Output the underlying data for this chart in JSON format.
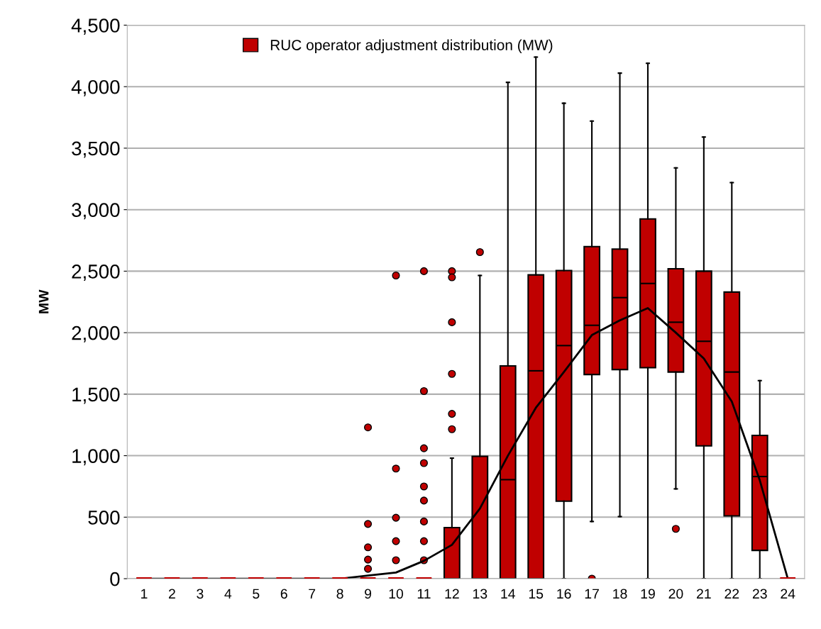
{
  "chart_data": {
    "type": "box",
    "ylabel": "MW",
    "categories": [
      "1",
      "2",
      "3",
      "4",
      "5",
      "6",
      "7",
      "8",
      "9",
      "10",
      "11",
      "12",
      "13",
      "14",
      "15",
      "16",
      "17",
      "18",
      "19",
      "20",
      "21",
      "22",
      "23",
      "24"
    ],
    "ylim": [
      0,
      4500
    ],
    "yticks": [
      {
        "value": 0,
        "label": "0"
      },
      {
        "value": 500,
        "label": "500"
      },
      {
        "value": 1000,
        "label": "1,000"
      },
      {
        "value": 1500,
        "label": "1,500"
      },
      {
        "value": 2000,
        "label": "2,000"
      },
      {
        "value": 2500,
        "label": "2,500"
      },
      {
        "value": 3000,
        "label": "3,000"
      },
      {
        "value": 3500,
        "label": "3,500"
      },
      {
        "value": 4000,
        "label": "4,000"
      },
      {
        "value": 4500,
        "label": "4,500"
      }
    ],
    "grid": "y",
    "legend": "top",
    "series": [
      {
        "name": "RUC operator adjustment distribution (MW)",
        "color": "#c00000",
        "boxes": [
          {
            "low": 0,
            "q1": 0,
            "median": 0,
            "q3": 0,
            "high": 0
          },
          {
            "low": 0,
            "q1": 0,
            "median": 0,
            "q3": 0,
            "high": 0
          },
          {
            "low": 0,
            "q1": 0,
            "median": 0,
            "q3": 0,
            "high": 0
          },
          {
            "low": 0,
            "q1": 0,
            "median": 0,
            "q3": 0,
            "high": 0
          },
          {
            "low": 0,
            "q1": 0,
            "median": 0,
            "q3": 0,
            "high": 0
          },
          {
            "low": 0,
            "q1": 0,
            "median": 0,
            "q3": 0,
            "high": 0
          },
          {
            "low": 0,
            "q1": 0,
            "median": 0,
            "q3": 0,
            "high": 0
          },
          {
            "low": 0,
            "q1": 0,
            "median": 0,
            "q3": 0,
            "high": 0
          },
          {
            "low": 0,
            "q1": 0,
            "median": 0,
            "q3": 0,
            "high": 0,
            "outliers": [
              1230,
              445,
              255,
              155,
              80
            ]
          },
          {
            "low": 0,
            "q1": 0,
            "median": 0,
            "q3": 0,
            "high": 0,
            "outliers": [
              2465,
              895,
              495,
              305,
              150
            ]
          },
          {
            "low": 0,
            "q1": 0,
            "median": 0,
            "q3": 0,
            "high": 0,
            "outliers": [
              2500,
              1525,
              1060,
              940,
              750,
              635,
              465,
              305,
              150
            ]
          },
          {
            "low": 0,
            "q1": 0,
            "median": 0,
            "q3": 415,
            "high": 980,
            "outliers": [
              2500,
              2450,
              2085,
              1665,
              1340,
              1215
            ]
          },
          {
            "low": 0,
            "q1": 0,
            "median": 0,
            "q3": 995,
            "high": 2465,
            "outliers": [
              2655
            ]
          },
          {
            "low": 0,
            "q1": 0,
            "median": 805,
            "q3": 1730,
            "high": 4035
          },
          {
            "low": 0,
            "q1": 0,
            "median": 1690,
            "q3": 2470,
            "high": 4240
          },
          {
            "low": 0,
            "q1": 630,
            "median": 1895,
            "q3": 2505,
            "high": 3865
          },
          {
            "low": 465,
            "q1": 1660,
            "median": 2060,
            "q3": 2700,
            "high": 3720,
            "outliers": [
              0
            ]
          },
          {
            "low": 505,
            "q1": 1700,
            "median": 2285,
            "q3": 2680,
            "high": 4110
          },
          {
            "low": 0,
            "q1": 1715,
            "median": 2400,
            "q3": 2925,
            "high": 4190
          },
          {
            "low": 730,
            "q1": 1680,
            "median": 2085,
            "q3": 2520,
            "high": 3340,
            "outliers": [
              405
            ]
          },
          {
            "low": 0,
            "q1": 1080,
            "median": 1930,
            "q3": 2500,
            "high": 3590
          },
          {
            "low": 0,
            "q1": 510,
            "median": 1680,
            "q3": 2330,
            "high": 3220
          },
          {
            "low": 0,
            "q1": 230,
            "median": 830,
            "q3": 1165,
            "high": 1610
          },
          {
            "low": 0,
            "q1": 0,
            "median": 0,
            "q3": 0,
            "high": 0
          }
        ]
      },
      {
        "type": "line",
        "color": "#000000",
        "values": [
          0,
          0,
          0,
          0,
          0,
          0,
          0,
          0,
          25,
          50,
          145,
          275,
          570,
          1000,
          1390,
          1680,
          1980,
          2100,
          2200,
          2000,
          1790,
          1440,
          800,
          0
        ]
      }
    ]
  }
}
